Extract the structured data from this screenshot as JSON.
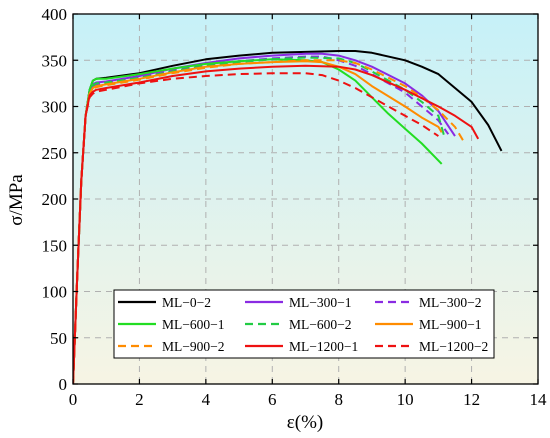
{
  "chart_data": {
    "type": "line",
    "xlabel": "ε(%)",
    "ylabel": "σ/MPa",
    "xlim": [
      0,
      14
    ],
    "ylim": [
      0,
      400
    ],
    "xticks": [
      0,
      2,
      4,
      6,
      8,
      10,
      12,
      14
    ],
    "yticks": [
      0,
      50,
      100,
      150,
      200,
      250,
      300,
      350,
      400
    ],
    "grid": true,
    "legend_position": "bottom-center",
    "background_gradient": [
      "#c6f1f8",
      "#f7f4e4"
    ],
    "series": [
      {
        "name": "ML−0−2",
        "color": "#000000",
        "dash": "solid",
        "points": [
          [
            0,
            0
          ],
          [
            0.12,
            110
          ],
          [
            0.25,
            220
          ],
          [
            0.38,
            290
          ],
          [
            0.5,
            318
          ],
          [
            0.6,
            328
          ],
          [
            0.7,
            330
          ],
          [
            1,
            331
          ],
          [
            2,
            336
          ],
          [
            3,
            344
          ],
          [
            4,
            351
          ],
          [
            5,
            355
          ],
          [
            6,
            358
          ],
          [
            7,
            359
          ],
          [
            8,
            360
          ],
          [
            8.5,
            360
          ],
          [
            9,
            358
          ],
          [
            10,
            350
          ],
          [
            10.5,
            343
          ],
          [
            11,
            335
          ],
          [
            11.5,
            320
          ],
          [
            12,
            305
          ],
          [
            12.5,
            280
          ],
          [
            12.9,
            252
          ]
        ]
      },
      {
        "name": "ML−300−1",
        "color": "#8a2be2",
        "dash": "solid",
        "points": [
          [
            0,
            0
          ],
          [
            0.12,
            110
          ],
          [
            0.25,
            220
          ],
          [
            0.38,
            290
          ],
          [
            0.5,
            315
          ],
          [
            0.6,
            324
          ],
          [
            0.7,
            326
          ],
          [
            1,
            327
          ],
          [
            2,
            333
          ],
          [
            3,
            341
          ],
          [
            4,
            347
          ],
          [
            5,
            352
          ],
          [
            6,
            355
          ],
          [
            7,
            357
          ],
          [
            7.5,
            357
          ],
          [
            8,
            355
          ],
          [
            8.5,
            350
          ],
          [
            9,
            343
          ],
          [
            10,
            325
          ],
          [
            10.5,
            312
          ],
          [
            11,
            295
          ],
          [
            11.5,
            268
          ]
        ]
      },
      {
        "name": "ML−300−2",
        "color": "#8a2be2",
        "dash": "dashed",
        "points": [
          [
            0,
            0
          ],
          [
            0.12,
            110
          ],
          [
            0.25,
            220
          ],
          [
            0.38,
            290
          ],
          [
            0.5,
            315
          ],
          [
            0.6,
            322
          ],
          [
            0.7,
            324
          ],
          [
            1,
            326
          ],
          [
            2,
            331
          ],
          [
            3,
            339
          ],
          [
            4,
            345
          ],
          [
            5,
            349
          ],
          [
            6,
            352
          ],
          [
            7,
            354
          ],
          [
            7.5,
            354
          ],
          [
            8,
            350
          ],
          [
            8.5,
            344
          ],
          [
            9,
            335
          ],
          [
            10,
            315
          ],
          [
            10.5,
            300
          ],
          [
            11,
            285
          ],
          [
            11.3,
            270
          ]
        ]
      },
      {
        "name": "ML−600−1",
        "color": "#22dd22",
        "dash": "solid",
        "points": [
          [
            0,
            0
          ],
          [
            0.12,
            110
          ],
          [
            0.25,
            220
          ],
          [
            0.38,
            290
          ],
          [
            0.5,
            318
          ],
          [
            0.6,
            328
          ],
          [
            0.7,
            330
          ],
          [
            1,
            330
          ],
          [
            2,
            335
          ],
          [
            3,
            341
          ],
          [
            4,
            346
          ],
          [
            5,
            349
          ],
          [
            6,
            351
          ],
          [
            7,
            350
          ],
          [
            7.5,
            348
          ],
          [
            8,
            340
          ],
          [
            8.5,
            328
          ],
          [
            9,
            310
          ],
          [
            9.5,
            292
          ],
          [
            10,
            276
          ],
          [
            10.5,
            260
          ],
          [
            11.1,
            238
          ]
        ]
      },
      {
        "name": "ML−600−2",
        "color": "#22cc44",
        "dash": "dashed",
        "points": [
          [
            0,
            0
          ],
          [
            0.12,
            110
          ],
          [
            0.25,
            220
          ],
          [
            0.38,
            290
          ],
          [
            0.5,
            316
          ],
          [
            0.6,
            323
          ],
          [
            0.7,
            325
          ],
          [
            1,
            326
          ],
          [
            2,
            331
          ],
          [
            3,
            338
          ],
          [
            4,
            344
          ],
          [
            5,
            348
          ],
          [
            6,
            351
          ],
          [
            7,
            353
          ],
          [
            8,
            352
          ],
          [
            8.5,
            347
          ],
          [
            9,
            338
          ],
          [
            10,
            318
          ],
          [
            10.5,
            305
          ],
          [
            11,
            290
          ],
          [
            11.2,
            265
          ]
        ]
      },
      {
        "name": "ML−900−1",
        "color": "#ff8c00",
        "dash": "solid",
        "points": [
          [
            0,
            0
          ],
          [
            0.12,
            110
          ],
          [
            0.25,
            220
          ],
          [
            0.38,
            290
          ],
          [
            0.5,
            314
          ],
          [
            0.6,
            320
          ],
          [
            0.7,
            322
          ],
          [
            1,
            324
          ],
          [
            2,
            330
          ],
          [
            3,
            337
          ],
          [
            4,
            343
          ],
          [
            5,
            346
          ],
          [
            6,
            348
          ],
          [
            7,
            349
          ],
          [
            7.5,
            348
          ],
          [
            8,
            343
          ],
          [
            8.5,
            335
          ],
          [
            9,
            322
          ],
          [
            10,
            300
          ],
          [
            10.5,
            288
          ],
          [
            11,
            278
          ],
          [
            11.1,
            272
          ]
        ]
      },
      {
        "name": "ML−900−2",
        "color": "#ff8c00",
        "dash": "dashed",
        "points": [
          [
            0,
            0
          ],
          [
            0.12,
            110
          ],
          [
            0.25,
            220
          ],
          [
            0.38,
            290
          ],
          [
            0.5,
            314
          ],
          [
            0.6,
            319
          ],
          [
            0.7,
            321
          ],
          [
            1,
            323
          ],
          [
            2,
            329
          ],
          [
            3,
            336
          ],
          [
            4,
            342
          ],
          [
            5,
            346
          ],
          [
            6,
            348
          ],
          [
            7,
            350
          ],
          [
            8,
            350
          ],
          [
            8.5,
            347
          ],
          [
            9,
            340
          ],
          [
            10,
            322
          ],
          [
            10.5,
            310
          ],
          [
            11,
            296
          ],
          [
            11.5,
            278
          ],
          [
            11.8,
            260
          ]
        ]
      },
      {
        "name": "ML−1200−1",
        "color": "#ee1111",
        "dash": "solid",
        "points": [
          [
            0,
            0
          ],
          [
            0.12,
            110
          ],
          [
            0.25,
            220
          ],
          [
            0.38,
            290
          ],
          [
            0.5,
            312
          ],
          [
            0.6,
            316
          ],
          [
            0.7,
            318
          ],
          [
            1,
            320
          ],
          [
            2,
            326
          ],
          [
            3,
            333
          ],
          [
            4,
            338
          ],
          [
            5,
            341
          ],
          [
            6,
            343
          ],
          [
            7,
            344
          ],
          [
            8,
            343
          ],
          [
            8.5,
            340
          ],
          [
            9,
            334
          ],
          [
            10,
            318
          ],
          [
            11,
            300
          ],
          [
            11.5,
            290
          ],
          [
            12,
            278
          ],
          [
            12.2,
            265
          ]
        ]
      },
      {
        "name": "ML−1200−2",
        "color": "#ee1111",
        "dash": "dashed",
        "points": [
          [
            0,
            0
          ],
          [
            0.12,
            110
          ],
          [
            0.25,
            220
          ],
          [
            0.38,
            290
          ],
          [
            0.5,
            310
          ],
          [
            0.6,
            314
          ],
          [
            0.7,
            316
          ],
          [
            1,
            318
          ],
          [
            2,
            325
          ],
          [
            3,
            330
          ],
          [
            4,
            333
          ],
          [
            5,
            335
          ],
          [
            6,
            336
          ],
          [
            7,
            336
          ],
          [
            7.5,
            334
          ],
          [
            8,
            328
          ],
          [
            8.5,
            320
          ],
          [
            9,
            310
          ],
          [
            9.5,
            300
          ],
          [
            10,
            290
          ],
          [
            10.5,
            280
          ],
          [
            11,
            268
          ]
        ]
      }
    ]
  }
}
